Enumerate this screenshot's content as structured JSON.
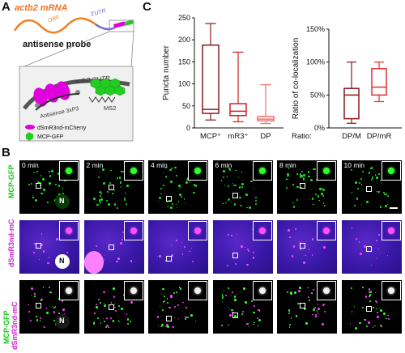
{
  "panels": {
    "a": "A",
    "b": "B",
    "c": "C"
  },
  "schematic": {
    "title": "actb2 mRNA",
    "orf": "ORF",
    "utr": "3'UTR",
    "probe": "antisense probe",
    "zoom_utr": "actb2 3'UTR",
    "antisense": "Antisense 3xP3",
    "ms2": "MS2",
    "legend": [
      {
        "label": "dSmR3nd-mCherry",
        "color": "#e000e0"
      },
      {
        "label": "MCP-GFP",
        "color": "#22cc22"
      }
    ]
  },
  "chart_data": [
    {
      "type": "box",
      "ylabel": "Puncta number",
      "yticks": [
        0,
        50,
        100,
        150,
        200,
        250
      ],
      "ylim": [
        0,
        250
      ],
      "categories": [
        "MCP⁺",
        "mR3⁺",
        "DP"
      ],
      "boxes": [
        {
          "name": "MCP⁺",
          "min": 18,
          "q1": 33,
          "median": 42,
          "q3": 188,
          "max": 237,
          "color": "#8b1a1a"
        },
        {
          "name": "mR3⁺",
          "min": 14,
          "q1": 28,
          "median": 38,
          "q3": 55,
          "max": 172,
          "color": "#cc2222"
        },
        {
          "name": "DP",
          "min": 10,
          "q1": 16,
          "median": 20,
          "q3": 26,
          "max": 98,
          "color": "#f07070"
        }
      ]
    },
    {
      "type": "box",
      "ylabel": "Ratio of co-localization",
      "yticks": [
        "0%",
        "50%",
        "100%",
        "150%"
      ],
      "ylim": [
        0,
        150
      ],
      "xlabel": "Ratio:",
      "categories": [
        "DP/M",
        "DP/mR"
      ],
      "boxes": [
        {
          "name": "DP/M",
          "min": 7,
          "q1": 14,
          "median": 50,
          "q3": 60,
          "max": 100,
          "color": "#8b1a1a"
        },
        {
          "name": "DP/mR",
          "min": 40,
          "q1": 50,
          "median": 62,
          "q3": 90,
          "max": 100,
          "color": "#e03030"
        }
      ]
    }
  ],
  "micro": {
    "times": [
      "0 min",
      "2 min",
      "4 min",
      "6 min",
      "8 min",
      "10 min"
    ],
    "rows": [
      {
        "label": "MCP-GFP"
      },
      {
        "label": "dSmR3nd-mC"
      },
      {
        "label_a": "MCP-GFP",
        "label_b": "dSmR3nd-mC"
      }
    ],
    "nucleus": "N"
  },
  "colors": {
    "gfp": "#18c818",
    "mcherry": "#d020d0",
    "mcp_box": "#8b1a1a",
    "mr3_box": "#cc2222",
    "dp_box": "#f07070"
  }
}
